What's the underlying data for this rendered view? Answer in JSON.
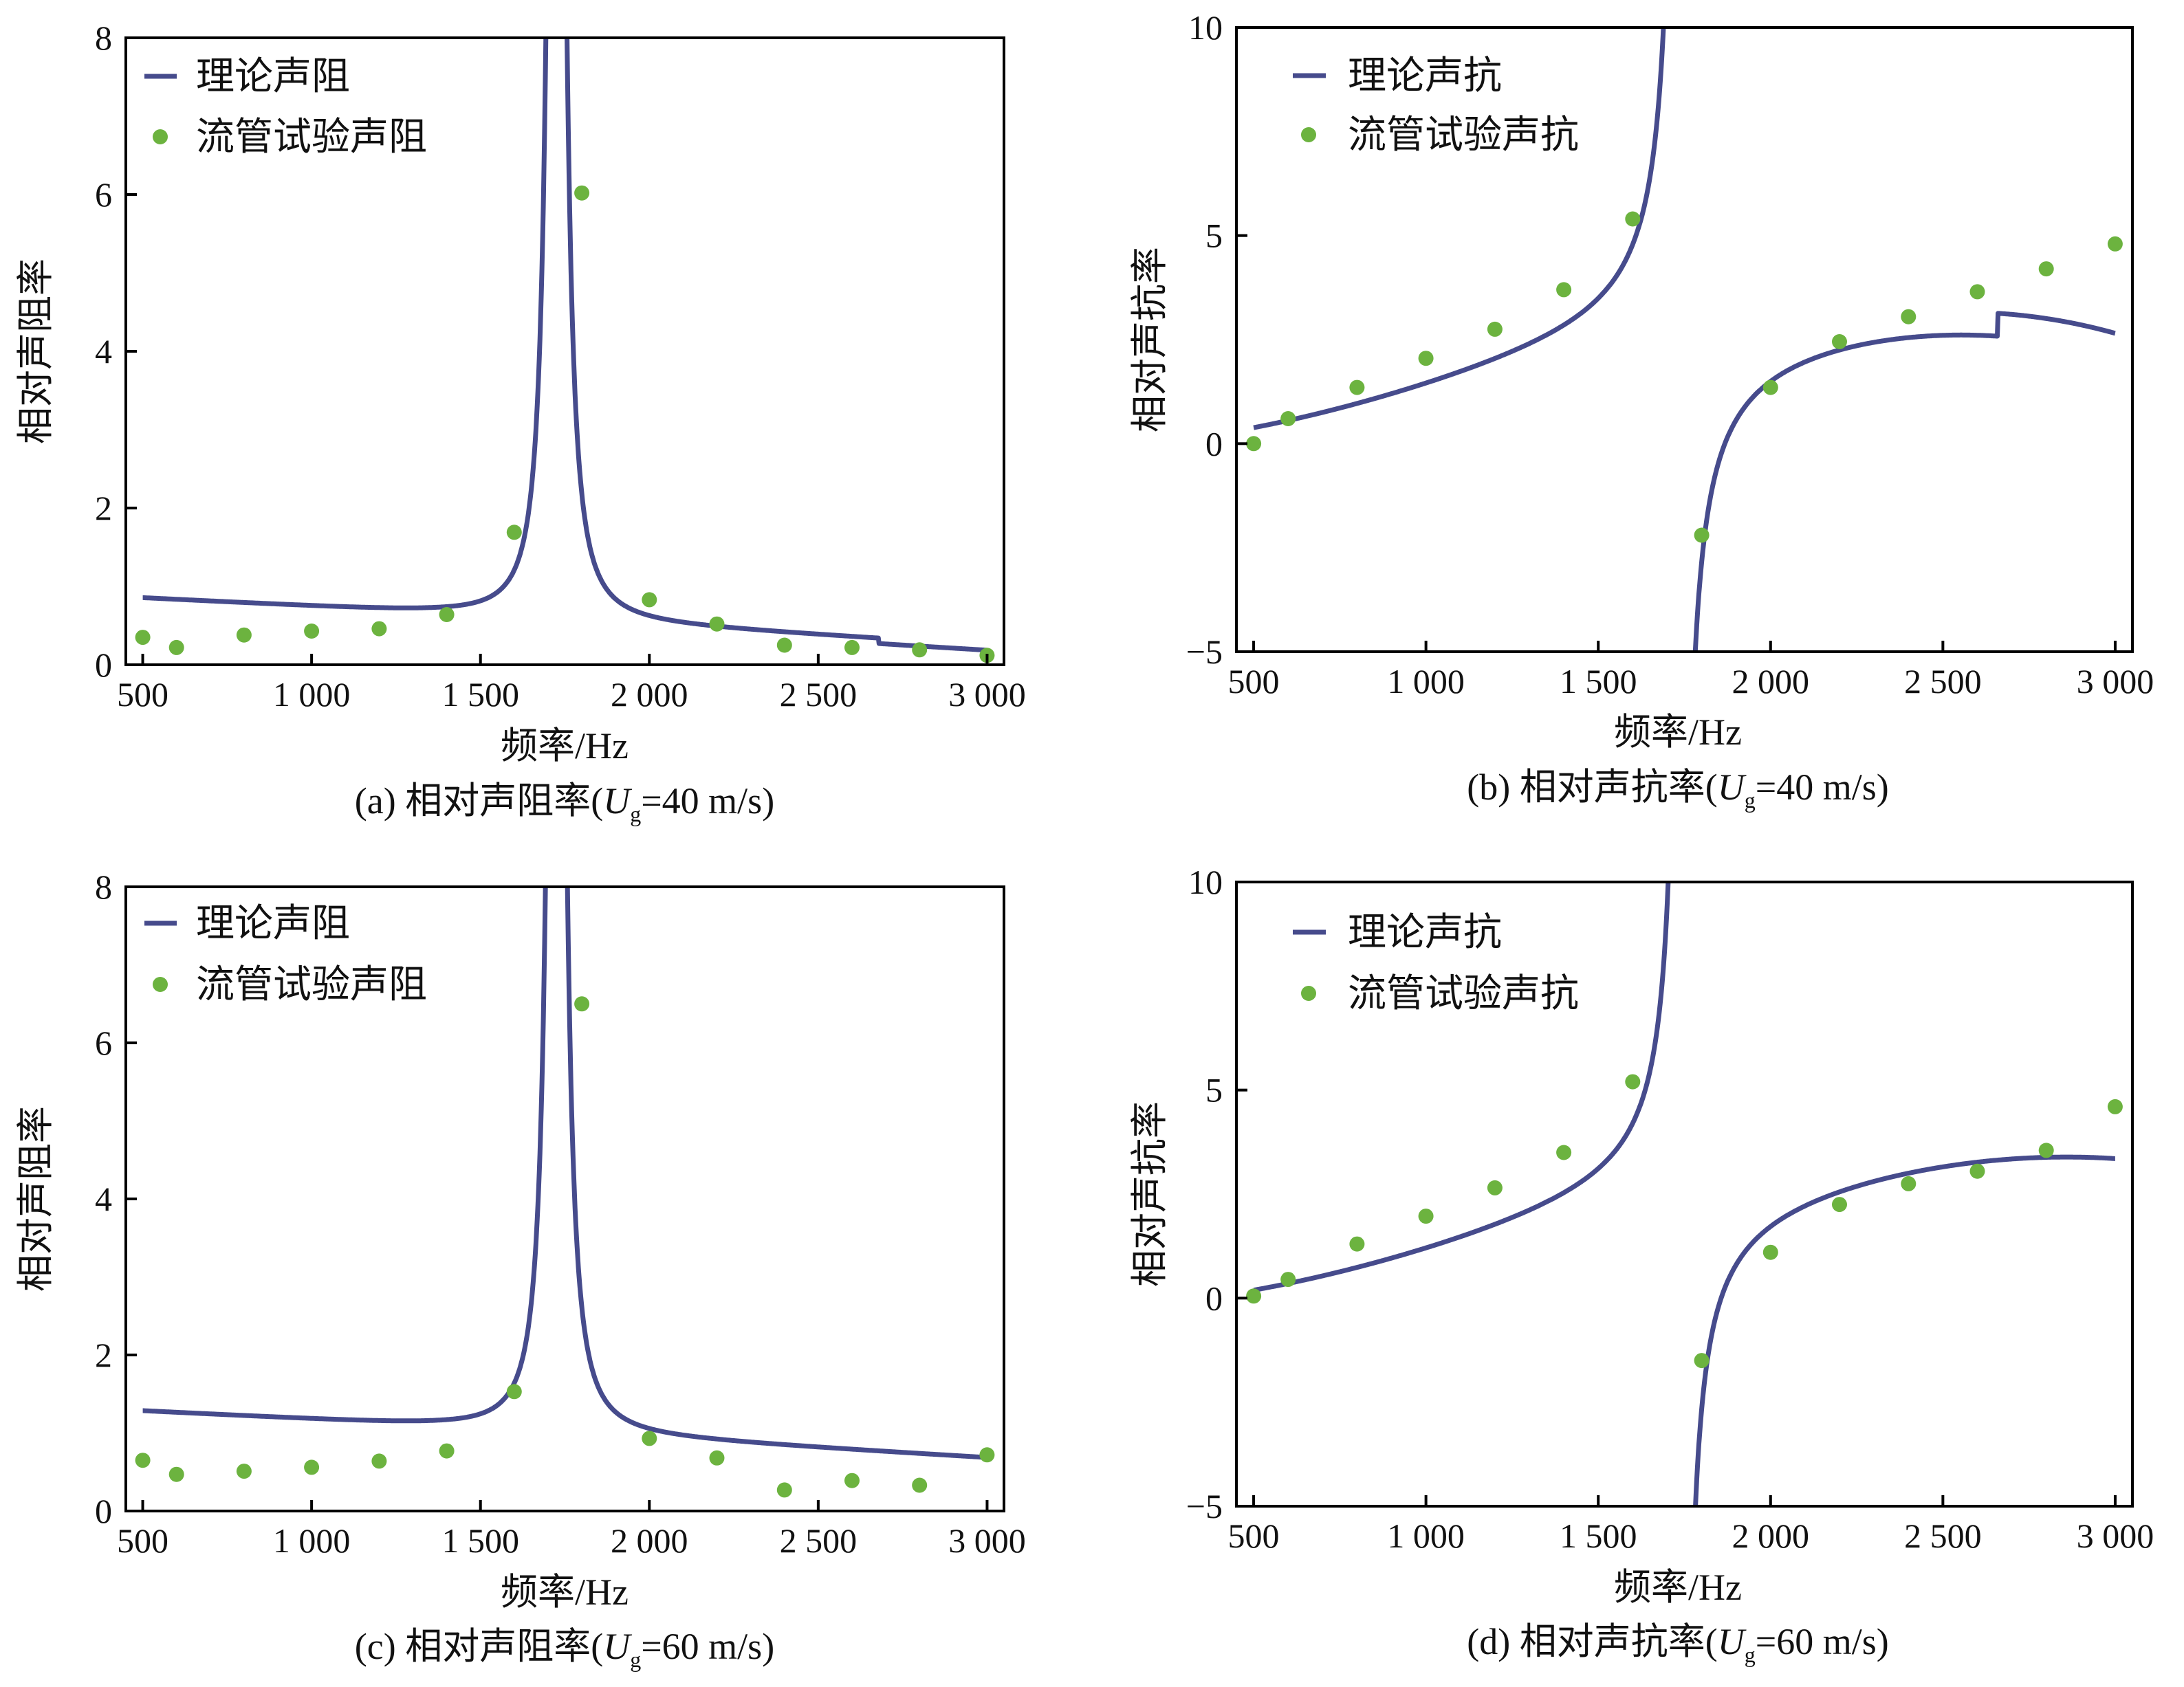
{
  "colors": {
    "theory": "#464b8c",
    "experiment": "#6cb33f",
    "axis": "#000000"
  },
  "chart_data": [
    {
      "id": "a",
      "type": "line+scatter",
      "caption": {
        "prefix": "(a) 相对声阻率(",
        "var": "U",
        "sub": "g",
        "suffix": "=40 m/s)"
      },
      "xlabel": "频率/Hz",
      "ylabel": "相对声阻率",
      "xlim": [
        450,
        3050
      ],
      "ylim": [
        0,
        8
      ],
      "xticks": [
        500,
        1000,
        1500,
        2000,
        2500,
        3000
      ],
      "xtick_labels": [
        "500",
        "1 000",
        "1 500",
        "2 000",
        "2 500",
        "3 000"
      ],
      "yticks": [
        0,
        2,
        4,
        6,
        8
      ],
      "ytick_labels": [
        "0",
        "2",
        "4",
        "6",
        "8"
      ],
      "legend": [
        "理论声阻",
        "流管试验声阻"
      ],
      "theory_model": {
        "kind": "resistance",
        "base_start": 0.85,
        "base_mid": 0.65,
        "base_end": 0.25,
        "f0": 1725,
        "amp": 30,
        "width": 18,
        "step_at": 2680,
        "step": -0.07
      },
      "experiment": {
        "x": [
          500,
          600,
          800,
          1000,
          1200,
          1400,
          1600,
          1800,
          2000,
          2200,
          2400,
          2600,
          2800,
          3000
        ],
        "y": [
          0.35,
          0.22,
          0.38,
          0.43,
          0.46,
          0.64,
          1.69,
          6.02,
          0.83,
          0.52,
          0.25,
          0.22,
          0.19,
          0.12
        ]
      }
    },
    {
      "id": "b",
      "type": "line+scatter",
      "caption": {
        "prefix": "(b) 相对声抗率(",
        "var": "U",
        "sub": "g",
        "suffix": "=40 m/s)"
      },
      "xlabel": "频率/Hz",
      "ylabel": "相对声抗率",
      "xlim": [
        450,
        3050
      ],
      "ylim": [
        -5,
        10
      ],
      "xticks": [
        500,
        1000,
        1500,
        2000,
        2500,
        3000
      ],
      "xtick_labels": [
        "500",
        "1 000",
        "1 500",
        "2 000",
        "2 500",
        "3 000"
      ],
      "yticks": [
        -5,
        0,
        5,
        10
      ],
      "ytick_labels": [
        "−5",
        "0",
        "5",
        "10"
      ],
      "legend": [
        "理论声抗",
        "流管试验声抗"
      ],
      "theory_model": {
        "kind": "reactance",
        "f0": 1735,
        "A": 350,
        "c0": 0.1,
        "c1": 1.38,
        "c2": 1.0,
        "c3": -0.95,
        "step_at": 2660,
        "step": 0.55
      },
      "experiment": {
        "x": [
          500,
          600,
          800,
          1000,
          1200,
          1400,
          1600,
          1800,
          2000,
          2200,
          2400,
          2600,
          2800,
          3000
        ],
        "y": [
          0.0,
          0.6,
          1.35,
          2.05,
          2.75,
          3.7,
          5.4,
          -2.2,
          1.35,
          2.45,
          3.05,
          3.65,
          4.2,
          4.8
        ]
      }
    },
    {
      "id": "c",
      "type": "line+scatter",
      "caption": {
        "prefix": "(c) 相对声阻率(",
        "var": "U",
        "sub": "g",
        "suffix": "=60 m/s)"
      },
      "xlabel": "频率/Hz",
      "ylabel": "相对声阻率",
      "xlim": [
        450,
        3050
      ],
      "ylim": [
        0,
        8
      ],
      "xticks": [
        500,
        1000,
        1500,
        2000,
        2500,
        3000
      ],
      "xtick_labels": [
        "500",
        "1 000",
        "1 500",
        "2 000",
        "2 500",
        "3 000"
      ],
      "yticks": [
        0,
        2,
        4,
        6,
        8
      ],
      "ytick_labels": [
        "0",
        "2",
        "4",
        "6",
        "8"
      ],
      "legend": [
        "理论声阻",
        "流管试验声阻"
      ],
      "theory_model": {
        "kind": "resistance",
        "base_start": 1.28,
        "base_mid": 1.08,
        "base_end": 0.68,
        "f0": 1725,
        "amp": 30,
        "width": 18,
        "step_at": 0,
        "step": 0
      },
      "experiment": {
        "x": [
          500,
          600,
          800,
          1000,
          1200,
          1400,
          1600,
          1800,
          2000,
          2200,
          2400,
          2600,
          2800,
          3000
        ],
        "y": [
          0.65,
          0.47,
          0.51,
          0.56,
          0.64,
          0.77,
          1.53,
          6.5,
          0.93,
          0.68,
          0.27,
          0.39,
          0.33,
          0.72
        ]
      }
    },
    {
      "id": "d",
      "type": "line+scatter",
      "caption": {
        "prefix": "(d) 相对声抗率(",
        "var": "U",
        "sub": "g",
        "suffix": "=60 m/s)"
      },
      "xlabel": "频率/Hz",
      "ylabel": "相对声抗率",
      "xlim": [
        450,
        3050
      ],
      "ylim": [
        -5,
        10
      ],
      "xticks": [
        500,
        1000,
        1500,
        2000,
        2500,
        3000
      ],
      "xtick_labels": [
        "500",
        "1 000",
        "1 500",
        "2 000",
        "2 500",
        "3 000"
      ],
      "yticks": [
        -5,
        0,
        5,
        10
      ],
      "ytick_labels": [
        "−5",
        "0",
        "5",
        "10"
      ],
      "legend": [
        "理论声抗",
        "流管试验声抗"
      ],
      "theory_model": {
        "kind": "reactance",
        "f0": 1742,
        "A": 300,
        "c0": -0.05,
        "c1": 1.3,
        "c2": 1.0,
        "c3": -0.75,
        "step_at": 0,
        "step": 0
      },
      "experiment": {
        "x": [
          500,
          600,
          800,
          1000,
          1200,
          1400,
          1600,
          1800,
          2000,
          2200,
          2400,
          2600,
          2800,
          3000
        ],
        "y": [
          0.05,
          0.45,
          1.3,
          1.97,
          2.65,
          3.5,
          5.2,
          -1.5,
          1.1,
          2.25,
          2.75,
          3.05,
          3.55,
          4.6
        ]
      }
    }
  ]
}
